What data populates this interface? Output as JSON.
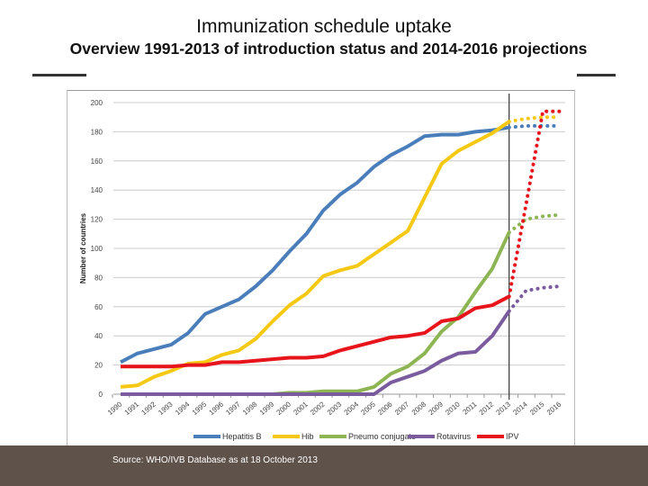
{
  "title": "Immunization schedule uptake",
  "subtitle": "Overview 1991-2013 of introduction status and 2014-2016 projections",
  "source": "Source: WHO/IVB Database as at 18 October 2013",
  "chart_data": {
    "type": "line",
    "ylabel": "Number of countries",
    "ylim": [
      0,
      200
    ],
    "yticks": [
      0,
      20,
      40,
      60,
      80,
      100,
      120,
      140,
      160,
      180,
      200
    ],
    "x": [
      1990,
      1991,
      1992,
      1993,
      1994,
      1995,
      1996,
      1997,
      1998,
      1999,
      2000,
      2001,
      2002,
      2003,
      2004,
      2005,
      2006,
      2007,
      2008,
      2009,
      2010,
      2011,
      2012,
      2013
    ],
    "xticks": [
      "1990",
      "1991",
      "1992",
      "1993",
      "1994",
      "1995",
      "1996",
      "1997",
      "1998",
      "1999",
      "2000",
      "2001",
      "2002",
      "2003",
      "2004",
      "2005",
      "2006",
      "2007",
      "2008",
      "2009",
      "2010",
      "2011",
      "2012",
      "2013",
      "2014",
      "2015",
      "2016"
    ],
    "grid": true,
    "legend": "bottom",
    "divider_year": 2013,
    "projection_x": [
      2013,
      2014,
      2015,
      2016
    ],
    "series": [
      {
        "name": "Hepatitis B",
        "color": "#4a7ebb",
        "values": [
          22,
          28,
          31,
          34,
          42,
          55,
          60,
          65,
          74,
          85,
          98,
          110,
          126,
          137,
          145,
          156,
          164,
          170,
          177,
          178,
          178,
          180,
          181,
          183
        ],
        "projection": [
          183,
          184,
          184,
          184
        ]
      },
      {
        "name": "Hib",
        "color": "#f5c913",
        "values": [
          5,
          6,
          12,
          16,
          21,
          22,
          27,
          30,
          38,
          50,
          61,
          69,
          81,
          85,
          88,
          96,
          104,
          112,
          135,
          158,
          167,
          173,
          179,
          187
        ],
        "projection": [
          187,
          189,
          190,
          190
        ]
      },
      {
        "name": "Pneumo conjugate",
        "color": "#8db553",
        "values": [
          0,
          0,
          0,
          0,
          0,
          0,
          0,
          0,
          0,
          0,
          1,
          1,
          2,
          2,
          2,
          5,
          14,
          19,
          28,
          43,
          53,
          70,
          86,
          111
        ],
        "projection": [
          111,
          120,
          122,
          123
        ]
      },
      {
        "name": "Rotavirus",
        "color": "#7a5c9e",
        "values": [
          0,
          0,
          0,
          0,
          0,
          0,
          0,
          0,
          0,
          0,
          0,
          0,
          0,
          0,
          0,
          0,
          8,
          12,
          16,
          23,
          28,
          29,
          40,
          57
        ],
        "projection": [
          57,
          71,
          73,
          74
        ]
      },
      {
        "name": "IPV",
        "color": "#e8141c",
        "values": [
          19,
          19,
          19,
          19,
          20,
          20,
          22,
          22,
          23,
          24,
          25,
          25,
          26,
          30,
          33,
          36,
          39,
          40,
          42,
          50,
          52,
          59,
          61,
          67
        ],
        "projection": [
          67,
          130,
          194,
          194
        ]
      }
    ]
  }
}
